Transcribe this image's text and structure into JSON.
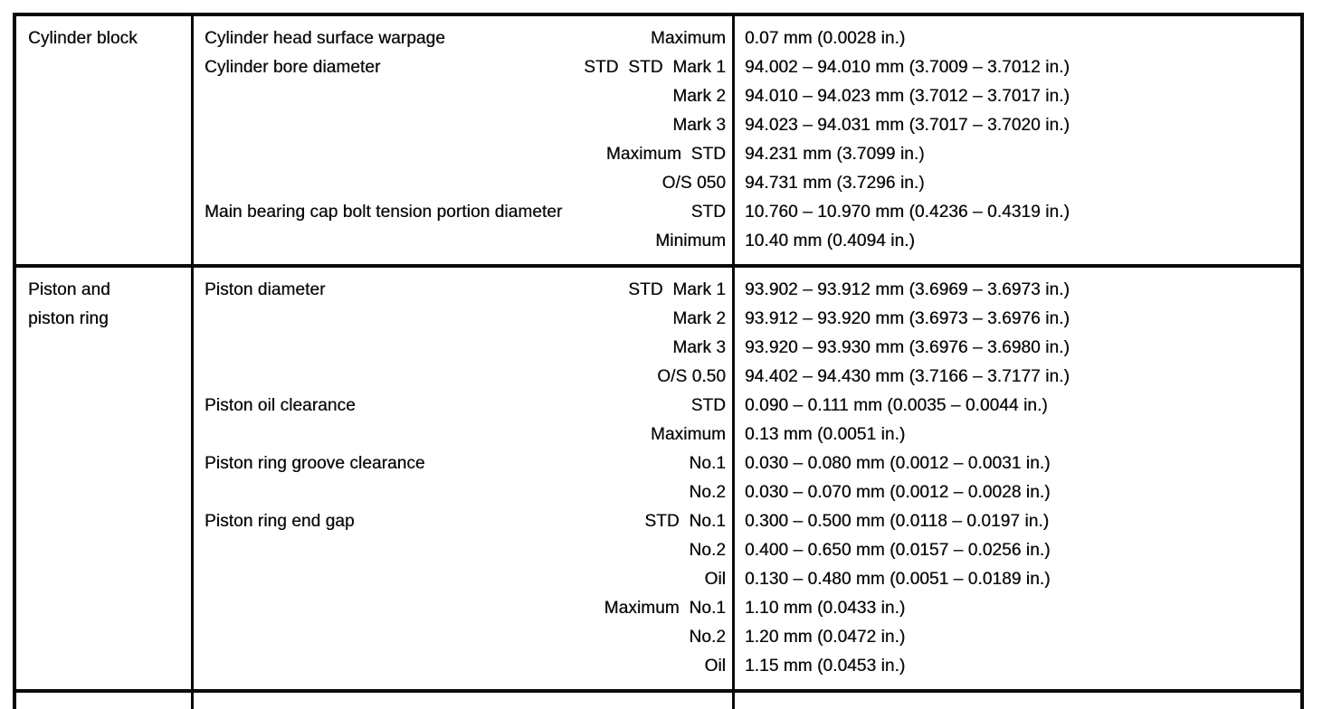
{
  "table": {
    "sections": [
      {
        "component_lines": [
          "Cylinder block"
        ],
        "rows": [
          {
            "item": "Cylinder head surface warpage",
            "qualifier": "Maximum",
            "value": "0.07 mm (0.0028 in.)"
          },
          {
            "item": "Cylinder bore diameter",
            "qualifier": "STD  STD  Mark 1",
            "value": "94.002 – 94.010 mm (3.7009 – 3.7012 in.)"
          },
          {
            "item": "",
            "qualifier": "Mark 2",
            "value": "94.010 – 94.023 mm (3.7012 – 3.7017 in.)"
          },
          {
            "item": "",
            "qualifier": "Mark 3",
            "value": "94.023 – 94.031 mm (3.7017 – 3.7020 in.)"
          },
          {
            "item": "",
            "qualifier": "Maximum  STD",
            "value": "94.231 mm (3.7099 in.)"
          },
          {
            "item": "",
            "qualifier": "O/S 050",
            "value": "94.731 mm (3.7296 in.)"
          },
          {
            "item": "Main bearing cap bolt tension portion diameter",
            "qualifier": "STD",
            "value": "10.760 – 10.970 mm (0.4236 – 0.4319 in.)"
          },
          {
            "item": "",
            "qualifier": "Minimum",
            "value": "10.40 mm (0.4094 in.)"
          }
        ]
      },
      {
        "component_lines": [
          "Piston and",
          "piston ring"
        ],
        "rows": [
          {
            "item": "Piston diameter",
            "qualifier": "STD  Mark 1",
            "value": "93.902 – 93.912 mm (3.6969 – 3.6973 in.)"
          },
          {
            "item": "",
            "qualifier": "Mark 2",
            "value": "93.912 – 93.920 mm (3.6973 – 3.6976 in.)"
          },
          {
            "item": "",
            "qualifier": "Mark 3",
            "value": "93.920 – 93.930 mm (3.6976 – 3.6980 in.)"
          },
          {
            "item": "",
            "qualifier": "O/S 0.50",
            "value": "94.402 – 94.430 mm (3.7166 – 3.7177 in.)"
          },
          {
            "item": "Piston oil clearance",
            "qualifier": "STD",
            "value": "0.090 – 0.111 mm (0.0035 – 0.0044 in.)"
          },
          {
            "item": "",
            "qualifier": "Maximum",
            "value": "0.13 mm (0.0051 in.)"
          },
          {
            "item": "Piston ring groove clearance",
            "qualifier": "No.1",
            "value": "0.030 – 0.080 mm (0.0012 – 0.0031 in.)"
          },
          {
            "item": "",
            "qualifier": "No.2",
            "value": "0.030 – 0.070 mm (0.0012 – 0.0028 in.)"
          },
          {
            "item": "Piston ring end gap",
            "qualifier": "STD  No.1",
            "value": "0.300 – 0.500 mm (0.0118 – 0.0197 in.)"
          },
          {
            "item": "",
            "qualifier": "No.2",
            "value": "0.400 – 0.650 mm (0.0157 – 0.0256 in.)"
          },
          {
            "item": "",
            "qualifier": "Oil",
            "value": "0.130 – 0.480 mm (0.0051 – 0.0189 in.)"
          },
          {
            "item": "",
            "qualifier": "Maximum  No.1",
            "value": "1.10 mm (0.0433 in.)"
          },
          {
            "item": "",
            "qualifier": "No.2",
            "value": "1.20 mm (0.0472 in.)"
          },
          {
            "item": "",
            "qualifier": "Oil",
            "value": "1.15 mm (0.0453 in.)"
          }
        ]
      },
      {
        "component_lines": [],
        "rows": [],
        "partial": true
      }
    ],
    "ink_color": "#0c0c0c",
    "paper_color": "#ffffff"
  }
}
